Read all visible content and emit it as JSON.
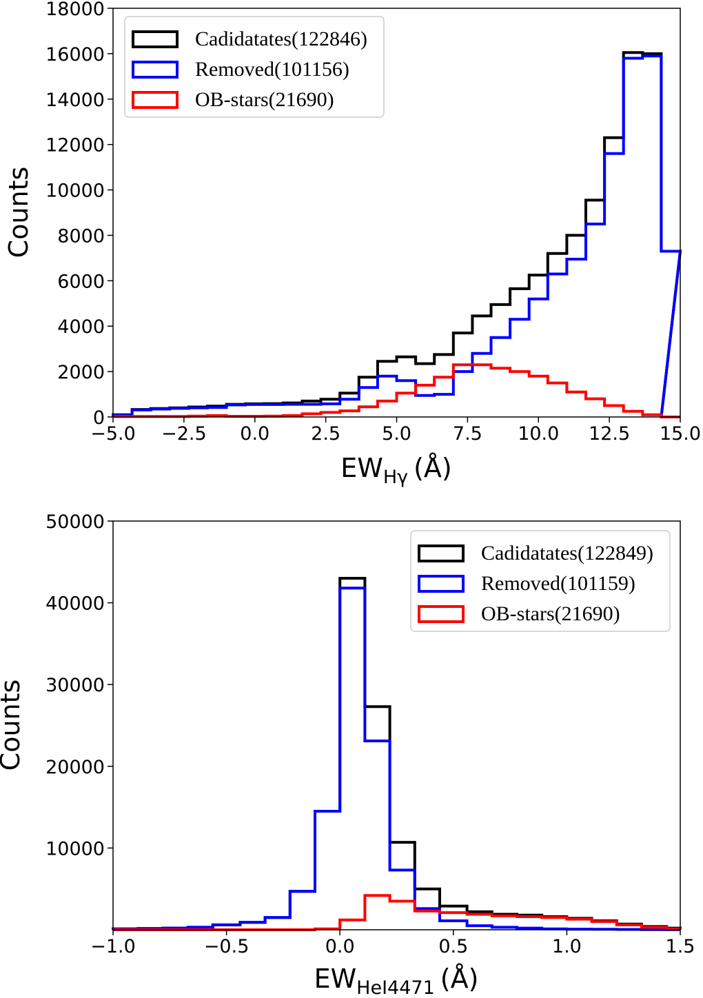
{
  "chart_data": [
    {
      "type": "histogram",
      "xlabel_main": "EW",
      "xlabel_sub": "Hγ",
      "xlabel_unit": "(Å)",
      "ylabel": "Counts",
      "xlim": [
        -5.0,
        15.0
      ],
      "ylim": [
        0,
        18000
      ],
      "xticks": [
        "−5.0",
        "−2.5",
        "0.0",
        "2.5",
        "5.0",
        "7.5",
        "10.0",
        "12.5",
        "15.0"
      ],
      "xtick_values": [
        -5.0,
        -2.5,
        0.0,
        2.5,
        5.0,
        7.5,
        10.0,
        12.5,
        15.0
      ],
      "yticks": [
        "0",
        "2000",
        "4000",
        "6000",
        "8000",
        "10000",
        "12000",
        "14000",
        "16000",
        "18000"
      ],
      "ytick_values": [
        0,
        2000,
        4000,
        6000,
        8000,
        10000,
        12000,
        14000,
        16000,
        18000
      ],
      "legend_position": "top-left",
      "bin_edges": [
        -5.0,
        -4.33,
        -3.67,
        -3.0,
        -2.33,
        -1.67,
        -1.0,
        -0.33,
        0.33,
        1.0,
        1.67,
        2.33,
        3.0,
        3.67,
        4.33,
        5.0,
        5.67,
        6.33,
        7.0,
        7.67,
        8.33,
        9.0,
        9.67,
        10.33,
        11.0,
        11.67,
        12.33,
        13.0,
        13.67,
        14.33
      ],
      "series": [
        {
          "name": "Cadidatates(122846)",
          "color": "#000000",
          "values": [
            100,
            330,
            370,
            400,
            440,
            480,
            560,
            580,
            590,
            620,
            700,
            780,
            1050,
            1750,
            2450,
            2650,
            2350,
            2750,
            3700,
            4450,
            4950,
            5650,
            6250,
            7200,
            8000,
            9550,
            12300,
            16050,
            16000,
            7300
          ]
        },
        {
          "name": "Removed(101156)",
          "color": "#0000ff",
          "values": [
            80,
            310,
            350,
            380,
            400,
            420,
            530,
            550,
            550,
            560,
            560,
            580,
            780,
            1300,
            1800,
            1600,
            950,
            1000,
            2000,
            2800,
            3500,
            4300,
            5200,
            6300,
            6950,
            8500,
            11600,
            15800,
            15900,
            7300
          ]
        },
        {
          "name": "OB-stars(21690)",
          "color": "#ff0000",
          "values": [
            20,
            20,
            20,
            20,
            40,
            60,
            30,
            30,
            40,
            60,
            140,
            200,
            270,
            450,
            700,
            1050,
            1400,
            1750,
            2300,
            2300,
            2150,
            2000,
            1800,
            1500,
            1100,
            800,
            500,
            250,
            100,
            0
          ]
        }
      ]
    },
    {
      "type": "histogram",
      "xlabel_main": "EW",
      "xlabel_sub": "HeI4471",
      "xlabel_unit": "(Å)",
      "ylabel": "Counts",
      "xlim": [
        -1.0,
        1.5
      ],
      "ylim": [
        0,
        50000
      ],
      "xticks": [
        "−1.0",
        "−0.5",
        "0.0",
        "0.5",
        "1.0",
        "1.5"
      ],
      "xtick_values": [
        -1.0,
        -0.5,
        0.0,
        0.5,
        1.0,
        1.5
      ],
      "yticks": [
        "10000",
        "20000",
        "30000",
        "40000",
        "50000"
      ],
      "ytick_values": [
        10000,
        20000,
        30000,
        40000,
        50000
      ],
      "legend_position": "top-right",
      "bin_edges": [
        -1.0,
        -0.89,
        -0.78,
        -0.67,
        -0.56,
        -0.44,
        -0.33,
        -0.22,
        -0.11,
        0.0,
        0.11,
        0.22,
        0.33,
        0.44,
        0.56,
        0.67,
        0.78,
        0.89,
        1.0,
        1.11,
        1.22,
        1.33,
        1.44,
        1.5
      ],
      "series": [
        {
          "name": "Cadidatates(122849)",
          "color": "#000000",
          "values": [
            100,
            150,
            200,
            300,
            600,
            900,
            1500,
            4700,
            14500,
            43000,
            27300,
            10700,
            5000,
            2900,
            2200,
            1900,
            1800,
            1600,
            1400,
            1100,
            700,
            400,
            200
          ]
        },
        {
          "name": "Removed(101159)",
          "color": "#0000ff",
          "values": [
            100,
            150,
            200,
            300,
            600,
            900,
            1500,
            4700,
            14500,
            41800,
            23100,
            7300,
            2600,
            1100,
            500,
            300,
            200,
            100,
            80,
            60,
            40,
            20,
            10
          ]
        },
        {
          "name": "OB-stars(21690)",
          "color": "#ff0000",
          "values": [
            0,
            0,
            0,
            0,
            0,
            0,
            0,
            0,
            100,
            1200,
            4200,
            3500,
            2300,
            2100,
            1900,
            1700,
            1600,
            1500,
            1300,
            1000,
            600,
            300,
            100
          ]
        }
      ]
    }
  ]
}
